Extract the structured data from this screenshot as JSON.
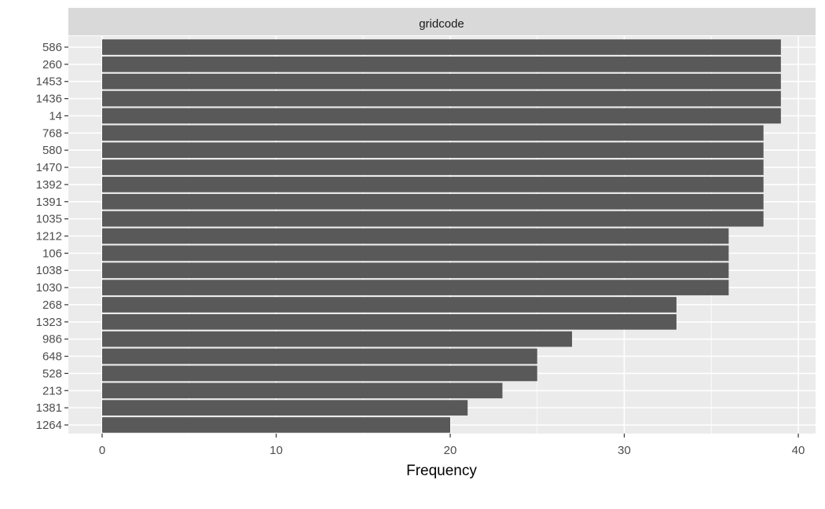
{
  "chart_data": {
    "type": "bar",
    "orientation": "horizontal",
    "facet_label": "gridcode",
    "categories": [
      "586",
      "260",
      "1453",
      "1436",
      "14",
      "768",
      "580",
      "1470",
      "1392",
      "1391",
      "1035",
      "1212",
      "106",
      "1038",
      "1030",
      "268",
      "1323",
      "986",
      "648",
      "528",
      "213",
      "1381",
      "1264"
    ],
    "values": [
      39,
      39,
      39,
      39,
      39,
      38,
      38,
      38,
      38,
      38,
      38,
      36,
      36,
      36,
      36,
      33,
      33,
      27,
      25,
      25,
      23,
      21,
      20
    ],
    "xlabel": "Frequency",
    "ylabel": "",
    "xlim": [
      0,
      40
    ],
    "x_ticks": [
      0,
      10,
      20,
      30,
      40
    ],
    "grid": true,
    "colors": {
      "bar": "#595959",
      "panel": "#ebebeb",
      "strip": "#d9d9d9",
      "grid": "#ffffff"
    }
  }
}
